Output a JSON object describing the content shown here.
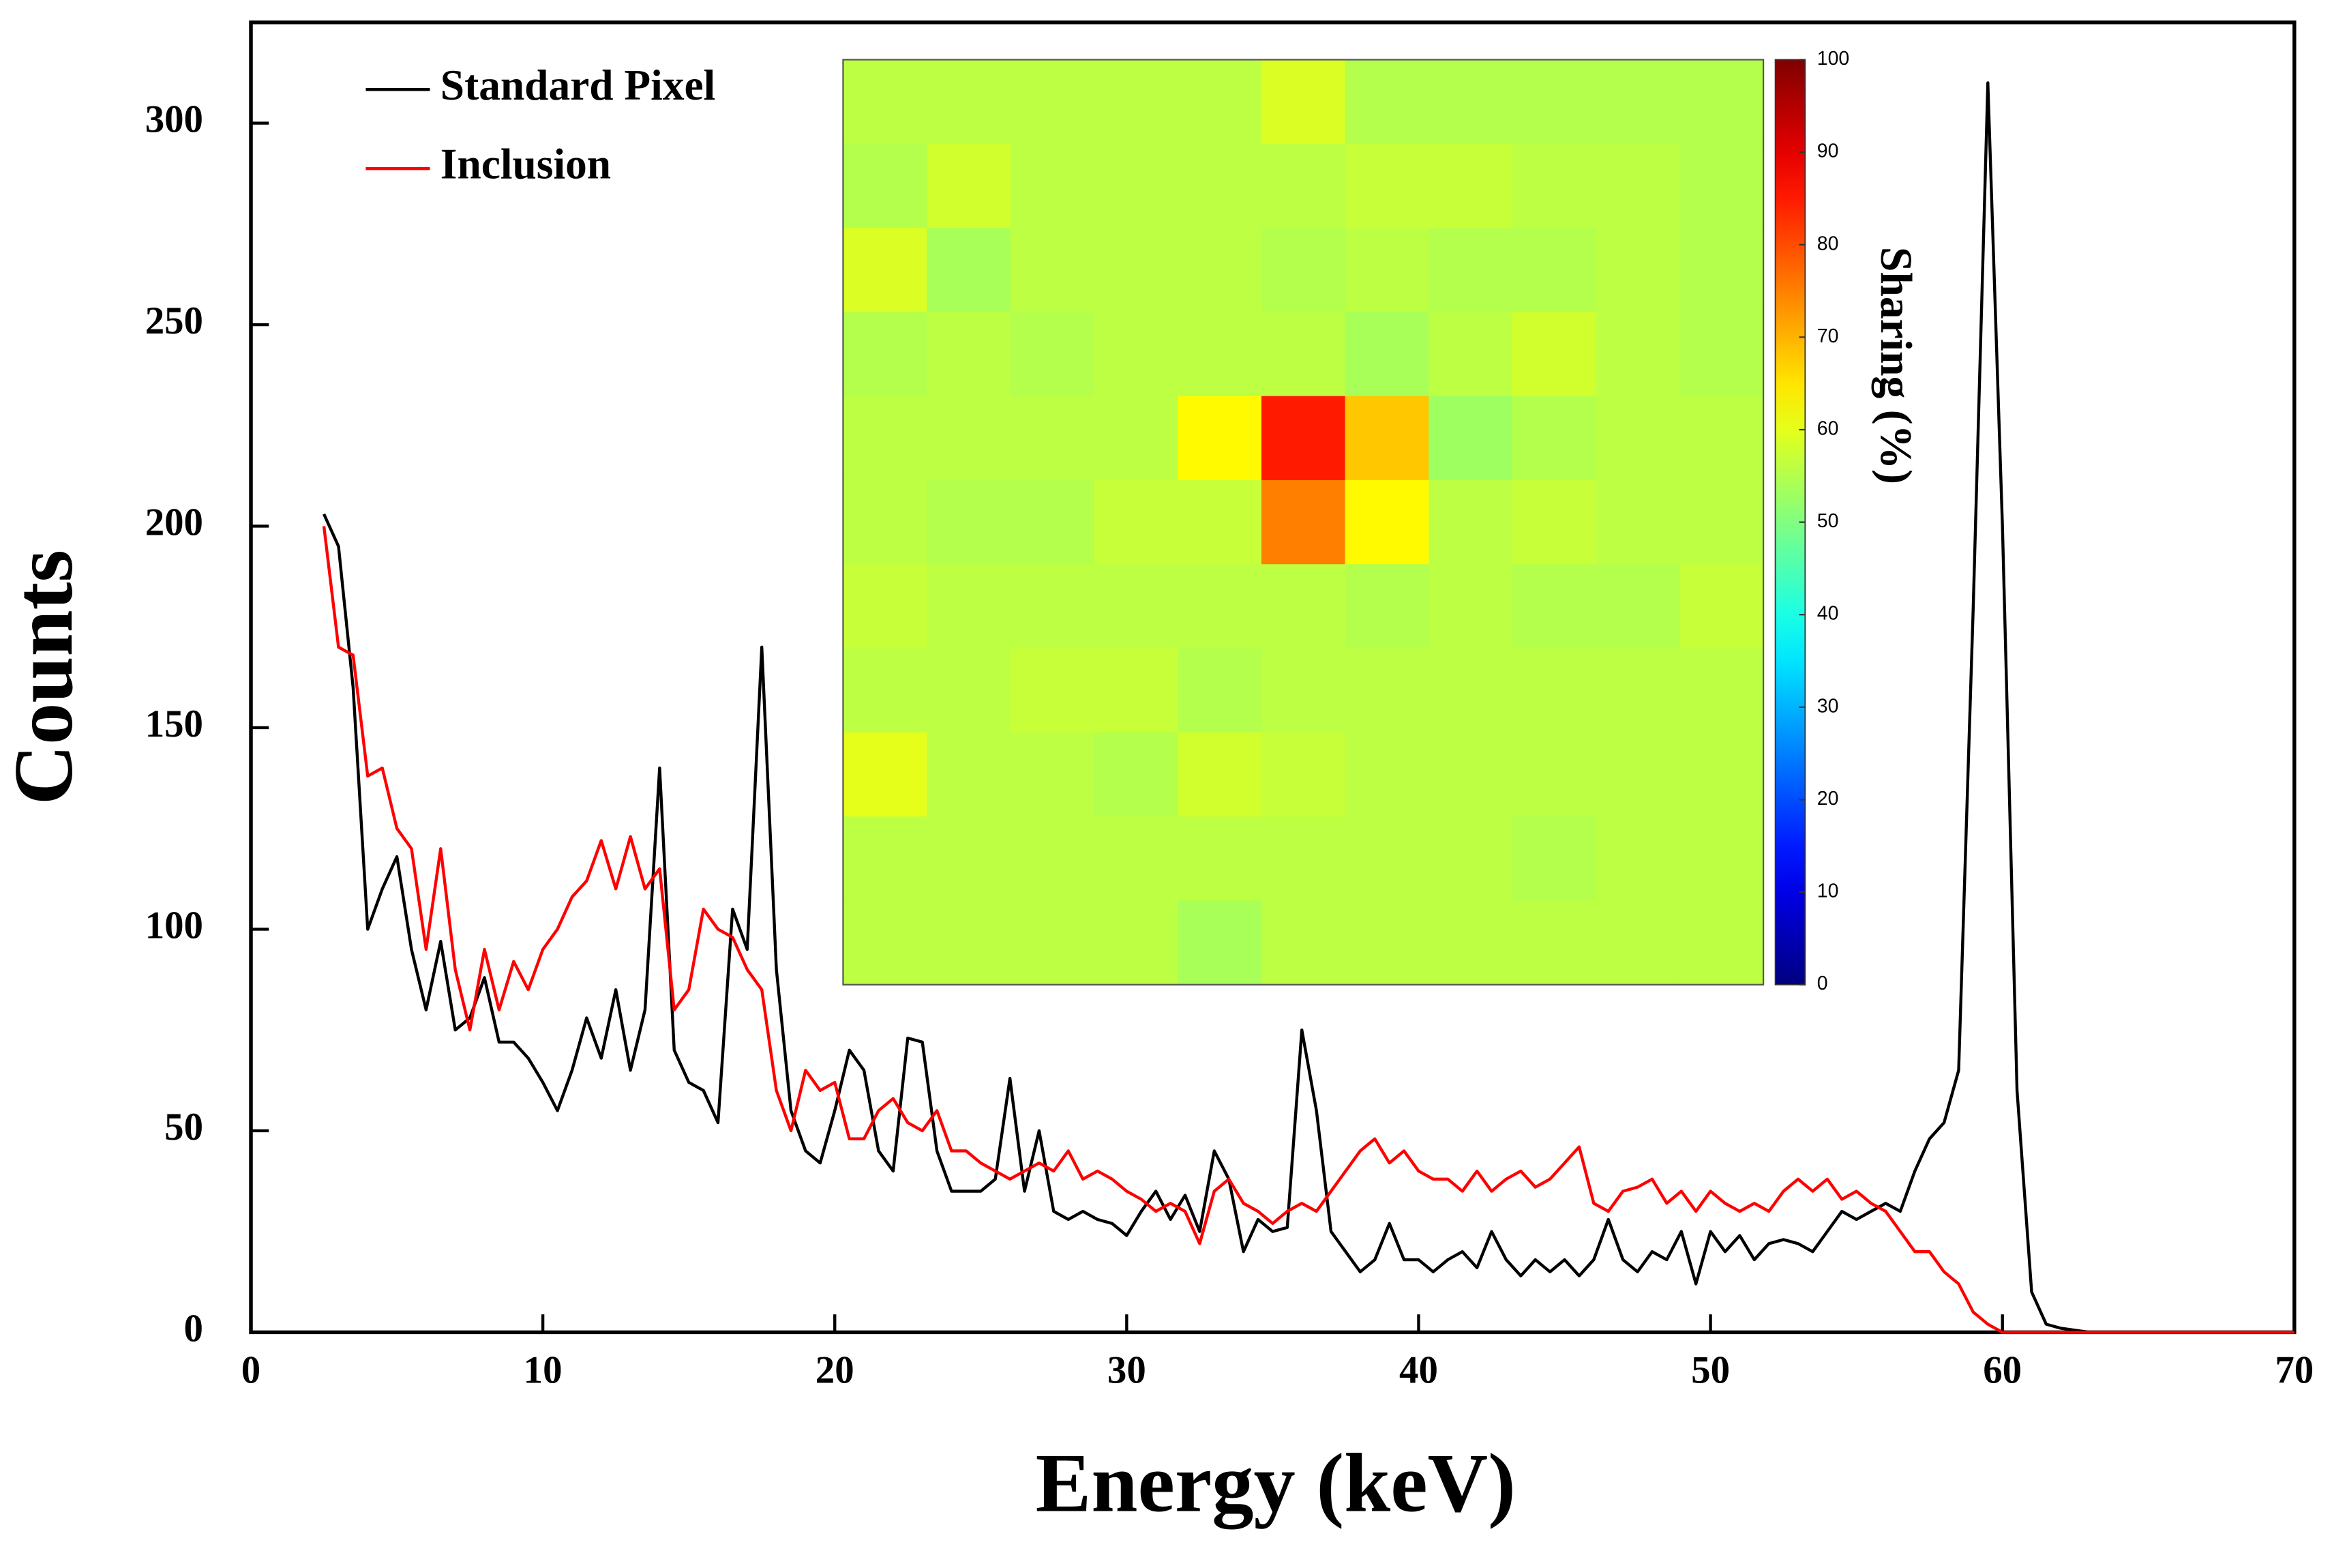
{
  "chart_data": [
    {
      "type": "line",
      "xlabel": "Energy (keV)",
      "ylabel": "Counts",
      "xlim": [
        0,
        70
      ],
      "ylim": [
        0,
        325
      ],
      "xticks": [
        0,
        10,
        20,
        30,
        40,
        50,
        60,
        70
      ],
      "yticks": [
        0,
        50,
        100,
        150,
        200,
        250,
        300
      ],
      "legend": "upper left",
      "x": [
        2.5,
        3,
        3.5,
        4,
        4.5,
        5,
        5.5,
        6,
        6.5,
        7,
        7.5,
        8,
        8.5,
        9,
        9.5,
        10,
        10.5,
        11,
        11.5,
        12,
        12.5,
        13,
        13.5,
        14,
        14.5,
        15,
        15.5,
        16,
        16.5,
        17,
        17.5,
        18,
        18.5,
        19,
        19.5,
        20,
        20.5,
        21,
        21.5,
        22,
        22.5,
        23,
        23.5,
        24,
        24.5,
        25,
        25.5,
        26,
        26.5,
        27,
        27.5,
        28,
        28.5,
        29,
        29.5,
        30,
        30.5,
        31,
        31.5,
        32,
        32.5,
        33,
        33.5,
        34,
        34.5,
        35,
        35.5,
        36,
        36.5,
        37,
        37.5,
        38,
        38.5,
        39,
        39.5,
        40,
        40.5,
        41,
        41.5,
        42,
        42.5,
        43,
        43.5,
        44,
        44.5,
        45,
        45.5,
        46,
        46.5,
        47,
        47.5,
        48,
        48.5,
        49,
        49.5,
        50,
        50.5,
        51,
        51.5,
        52,
        52.5,
        53,
        53.5,
        54,
        54.5,
        55,
        55.5,
        56,
        56.5,
        57,
        57.5,
        58,
        58.5,
        59,
        59.5,
        60,
        60.5,
        61,
        61.5,
        62,
        63,
        65,
        70
      ],
      "series": [
        {
          "name": "Standard Pixel",
          "color": "#000000",
          "values": [
            203,
            195,
            160,
            100,
            110,
            118,
            95,
            80,
            97,
            75,
            78,
            88,
            72,
            72,
            68,
            62,
            55,
            65,
            78,
            68,
            85,
            65,
            80,
            140,
            70,
            62,
            60,
            52,
            105,
            95,
            170,
            90,
            55,
            45,
            42,
            55,
            70,
            65,
            45,
            40,
            73,
            72,
            45,
            35,
            35,
            35,
            38,
            63,
            35,
            50,
            30,
            28,
            30,
            28,
            27,
            24,
            30,
            35,
            28,
            34,
            25,
            45,
            38,
            20,
            28,
            25,
            26,
            75,
            55,
            25,
            20,
            15,
            18,
            27,
            18,
            18,
            15,
            18,
            20,
            16,
            25,
            18,
            14,
            18,
            15,
            18,
            14,
            18,
            28,
            18,
            15,
            20,
            18,
            25,
            12,
            25,
            20,
            24,
            18,
            22,
            23,
            22,
            20,
            25,
            30,
            28,
            30,
            32,
            30,
            40,
            48,
            52,
            65,
            180,
            310,
            200,
            60,
            10,
            2,
            1,
            0,
            0,
            0
          ]
        },
        {
          "name": "Inclusion",
          "color": "#ff0000",
          "values": [
            200,
            170,
            168,
            138,
            140,
            125,
            120,
            95,
            120,
            90,
            75,
            95,
            80,
            92,
            85,
            95,
            100,
            108,
            112,
            122,
            110,
            123,
            110,
            115,
            80,
            85,
            105,
            100,
            98,
            90,
            85,
            60,
            50,
            65,
            60,
            62,
            48,
            48,
            55,
            58,
            52,
            50,
            55,
            45,
            45,
            42,
            40,
            38,
            40,
            42,
            40,
            45,
            38,
            40,
            38,
            35,
            33,
            30,
            32,
            30,
            22,
            35,
            38,
            32,
            30,
            27,
            30,
            32,
            30,
            35,
            40,
            45,
            48,
            42,
            45,
            40,
            38,
            38,
            35,
            40,
            35,
            38,
            40,
            36,
            38,
            42,
            46,
            32,
            30,
            35,
            36,
            38,
            32,
            35,
            30,
            35,
            32,
            30,
            32,
            30,
            35,
            38,
            35,
            38,
            33,
            35,
            32,
            30,
            25,
            20,
            20,
            15,
            12,
            5,
            2,
            0,
            0,
            0,
            0,
            0,
            0,
            0,
            0
          ]
        }
      ]
    },
    {
      "type": "heatmap",
      "colormap": "jet",
      "clim": [
        0,
        100
      ],
      "colorbar_ticks": [
        0,
        10,
        20,
        30,
        40,
        50,
        60,
        70,
        80,
        90,
        100
      ],
      "colorbar_label": "Sharing (%)",
      "values": [
        [
          56,
          56,
          56,
          56,
          56,
          59,
          55,
          55,
          55,
          55,
          55
        ],
        [
          55,
          58,
          56,
          56,
          56,
          56,
          57,
          57,
          56,
          56,
          55
        ],
        [
          59,
          54,
          56,
          56,
          56,
          55,
          56,
          55,
          55,
          56,
          55
        ],
        [
          55,
          56,
          55,
          56,
          56,
          56,
          54,
          56,
          58,
          56,
          55
        ],
        [
          56,
          56,
          56,
          56,
          63,
          85,
          68,
          53,
          55,
          56,
          56
        ],
        [
          56,
          55,
          55,
          57,
          57,
          75,
          63,
          56,
          57,
          56,
          56
        ],
        [
          57,
          56,
          56,
          56,
          56,
          56,
          55,
          56,
          55,
          55,
          57
        ],
        [
          56,
          56,
          57,
          57,
          55,
          56,
          56,
          56,
          56,
          56,
          56
        ],
        [
          60,
          56,
          56,
          55,
          58,
          57,
          56,
          56,
          56,
          56,
          56
        ],
        [
          56,
          56,
          56,
          56,
          56,
          56,
          56,
          56,
          55,
          56,
          56
        ],
        [
          56,
          56,
          56,
          56,
          54,
          56,
          56,
          56,
          56,
          56,
          56
        ]
      ]
    }
  ]
}
